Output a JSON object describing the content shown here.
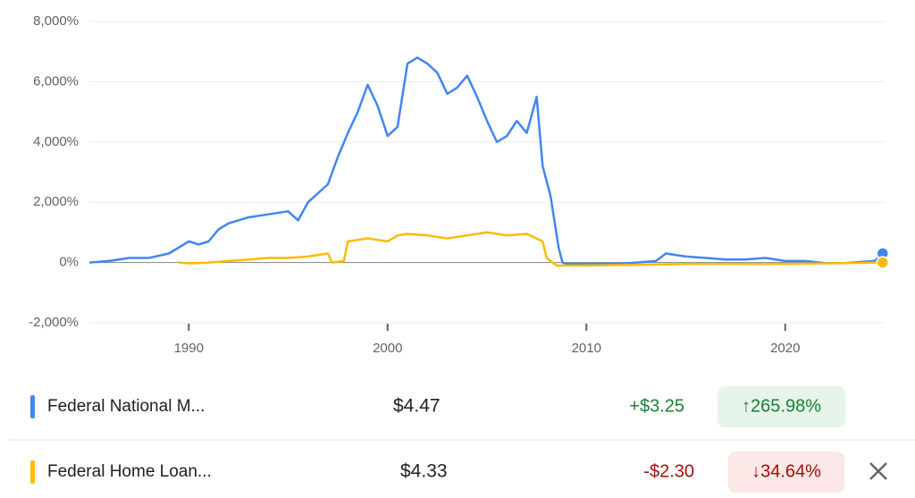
{
  "chart_data": {
    "type": "line",
    "xlim": [
      1985,
      2025
    ],
    "xticks": [
      1990,
      2000,
      2010,
      2020
    ],
    "ylim": [
      -2000,
      8000
    ],
    "yticks": [
      {
        "value": -2000,
        "label": "-2,000%"
      },
      {
        "value": 0,
        "label": "0%"
      },
      {
        "value": 2000,
        "label": "2,000%"
      },
      {
        "value": 4000,
        "label": "4,000%"
      },
      {
        "value": 6000,
        "label": "6,000%"
      },
      {
        "value": 8000,
        "label": "8,000%"
      }
    ],
    "grid": true,
    "series": [
      {
        "name": "Federal National M...",
        "color": "#4285f4",
        "x": [
          1985,
          1986,
          1987,
          1988,
          1989,
          1990,
          1990.5,
          1991,
          1991.5,
          1992,
          1993,
          1994,
          1995,
          1995.5,
          1996,
          1997,
          1997.5,
          1998,
          1998.5,
          1999,
          1999.5,
          2000,
          2000.5,
          2001,
          2001.5,
          2002,
          2002.5,
          2003,
          2003.5,
          2004,
          2004.5,
          2005,
          2005.5,
          2006,
          2006.5,
          2007,
          2007.5,
          2007.8,
          2008.2,
          2008.6,
          2008.8,
          2009,
          2010,
          2012,
          2013.5,
          2014,
          2015,
          2016,
          2017,
          2018,
          2019,
          2020,
          2021,
          2022,
          2023,
          2024.5,
          2024.9
        ],
        "values": [
          0,
          50,
          150,
          150,
          300,
          700,
          600,
          700,
          1100,
          1300,
          1500,
          1600,
          1700,
          1400,
          2000,
          2600,
          3500,
          4300,
          5000,
          5900,
          5200,
          4200,
          4500,
          6600,
          6800,
          6600,
          6300,
          5600,
          5800,
          6200,
          5500,
          4700,
          4000,
          4200,
          4700,
          4300,
          5500,
          3200,
          2200,
          500,
          0,
          -50,
          -50,
          -30,
          50,
          300,
          200,
          150,
          100,
          100,
          150,
          50,
          50,
          -20,
          -20,
          50,
          300
        ]
      },
      {
        "name": "Federal Home Loan...",
        "color": "#fbbc04",
        "x": [
          1989.5,
          1990,
          1991,
          1992,
          1993,
          1994,
          1995,
          1996,
          1997,
          1997.2,
          1997.8,
          1998,
          1999,
          2000,
          2000.5,
          2001,
          2002,
          2003,
          2004,
          2005,
          2006,
          2007,
          2007.8,
          2008,
          2008.5,
          2010,
          2015,
          2020,
          2024.9
        ],
        "values": [
          0,
          -30,
          0,
          50,
          100,
          150,
          150,
          200,
          300,
          0,
          50,
          700,
          800,
          700,
          900,
          950,
          900,
          800,
          900,
          1000,
          900,
          950,
          700,
          150,
          -100,
          -100,
          -50,
          -50,
          0
        ]
      }
    ]
  },
  "legend_rows": [
    {
      "price": "$4.47",
      "change": "+$3.25",
      "change_percent": "↑265.98%"
    },
    {
      "price": "$4.33",
      "change": "-$2.30",
      "change_percent": "↓34.64%"
    }
  ]
}
